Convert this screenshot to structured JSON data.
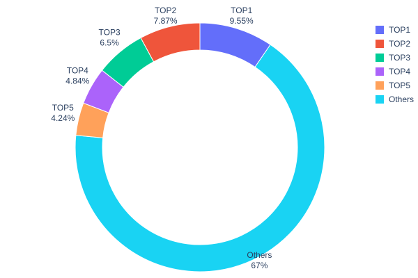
{
  "chart_data": {
    "type": "pie",
    "subtype": "donut",
    "hole": 0.78,
    "legend_position": "right",
    "text_color": "#2a3f5f",
    "background_color": "#ffffff",
    "categories": [
      "TOP1",
      "TOP2",
      "TOP3",
      "TOP4",
      "TOP5",
      "Others"
    ],
    "values": [
      9.55,
      7.87,
      6.5,
      4.84,
      4.24,
      67
    ],
    "slices_clockwise_from_top": [
      {
        "label": "TOP1",
        "value": 9.55,
        "display_pct": "9.55%",
        "color": "#636EFA"
      },
      {
        "label": "Others",
        "value": 67,
        "display_pct": "67%",
        "color": "#19D3F3"
      },
      {
        "label": "TOP5",
        "value": 4.24,
        "display_pct": "4.24%",
        "color": "#FFA15A"
      },
      {
        "label": "TOP4",
        "value": 4.84,
        "display_pct": "4.84%",
        "color": "#AB63FA"
      },
      {
        "label": "TOP3",
        "value": 6.5,
        "display_pct": "6.5%",
        "color": "#00CC96"
      },
      {
        "label": "TOP2",
        "value": 7.87,
        "display_pct": "7.87%",
        "color": "#EF553B"
      }
    ],
    "legend": [
      {
        "label": "TOP1",
        "color": "#636EFA"
      },
      {
        "label": "TOP2",
        "color": "#EF553B"
      },
      {
        "label": "TOP3",
        "color": "#00CC96"
      },
      {
        "label": "TOP4",
        "color": "#AB63FA"
      },
      {
        "label": "TOP5",
        "color": "#FFA15A"
      },
      {
        "label": "Others",
        "color": "#19D3F3"
      }
    ]
  }
}
